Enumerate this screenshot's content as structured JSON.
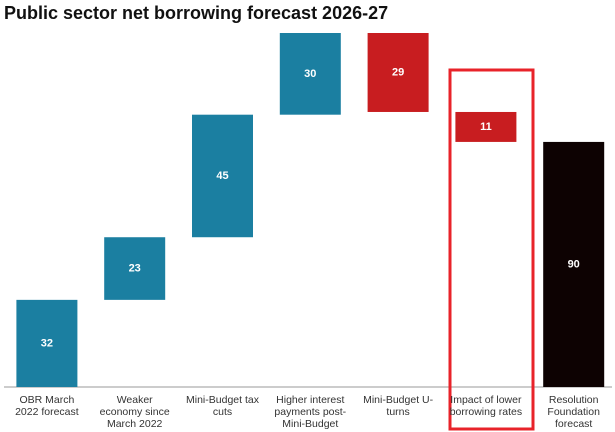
{
  "chart_data": {
    "type": "waterfall",
    "title": "Public sector net borrowing forecast 2026-27",
    "categories": [
      "OBR March 2022 forecast",
      "Weaker economy since March 2022",
      "Mini-Budget tax cuts",
      "Higher interest payments post-Mini-Budget",
      "Mini-Budget U-turns",
      "Impact of lower borrowing rates",
      "Resolution Foundation forecast"
    ],
    "values": [
      32,
      23,
      45,
      30,
      29,
      11,
      90
    ],
    "measures": [
      "increase",
      "increase",
      "increase",
      "increase",
      "decrease",
      "decrease",
      "total"
    ],
    "colors": {
      "increase": "#1b7fa1",
      "decrease": "#c81d20",
      "total": "#0d0202"
    }
  }
}
